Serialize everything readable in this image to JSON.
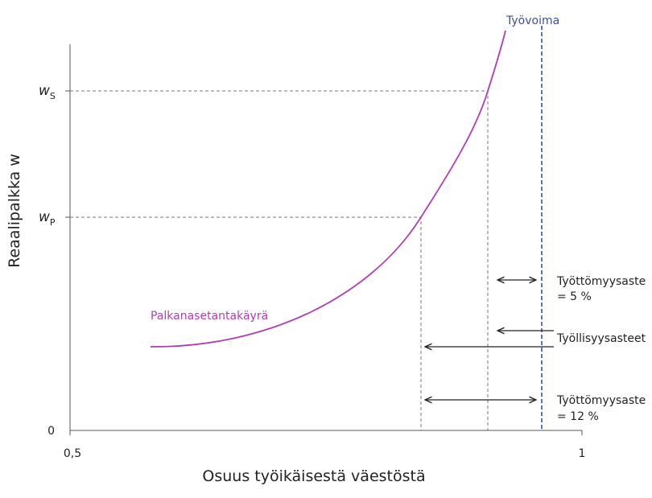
{
  "y_axis_label": "Reaalipalkka w",
  "x_axis_label": "Osuus työikäisestä väestöstä",
  "x_ticks": [
    "0,5",
    "1"
  ],
  "y_ticks": [
    "0"
  ],
  "wage_levels": [
    {
      "symbol": "w",
      "subscript": "S"
    },
    {
      "symbol": "w",
      "subscript": "P"
    }
  ],
  "curve_label": "Palkanasetantakäyrä",
  "labor_force_label": "Työvoima",
  "annotations": [
    [
      "Työttömyysaste",
      "= 5 %"
    ],
    [
      "Työllisyysasteet"
    ],
    [
      "Työttömyysaste",
      "= 12 %"
    ]
  ]
}
